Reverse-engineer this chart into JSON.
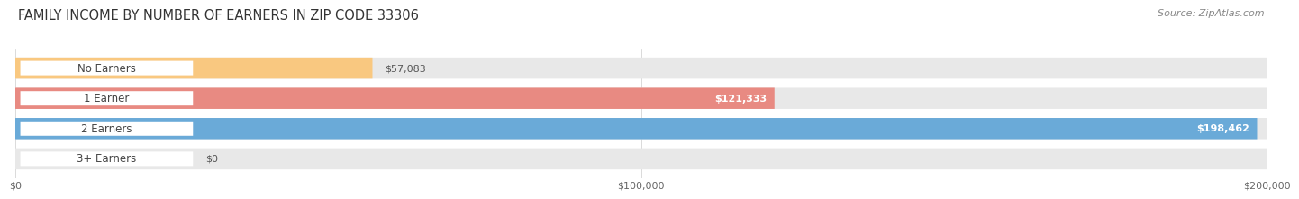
{
  "title": "FAMILY INCOME BY NUMBER OF EARNERS IN ZIP CODE 33306",
  "source": "Source: ZipAtlas.com",
  "categories": [
    "No Earners",
    "1 Earner",
    "2 Earners",
    "3+ Earners"
  ],
  "values": [
    57083,
    121333,
    198462,
    0
  ],
  "max_value": 200000,
  "bar_colors": [
    "#f9c880",
    "#e88a82",
    "#6aaad8",
    "#c3a8d1"
  ],
  "bar_bg_color": "#e8e8e8",
  "value_labels": [
    "$57,083",
    "$121,333",
    "$198,462",
    "$0"
  ],
  "value_label_colors": [
    "#555555",
    "#ffffff",
    "#ffffff",
    "#555555"
  ],
  "value_label_inside": [
    false,
    true,
    true,
    false
  ],
  "x_ticks": [
    0,
    100000,
    200000
  ],
  "x_tick_labels": [
    "$0",
    "$100,000",
    "$200,000"
  ],
  "title_fontsize": 10.5,
  "source_fontsize": 8,
  "bar_label_fontsize": 8.5,
  "value_label_fontsize": 8,
  "tick_fontsize": 8,
  "background_color": "#ffffff"
}
